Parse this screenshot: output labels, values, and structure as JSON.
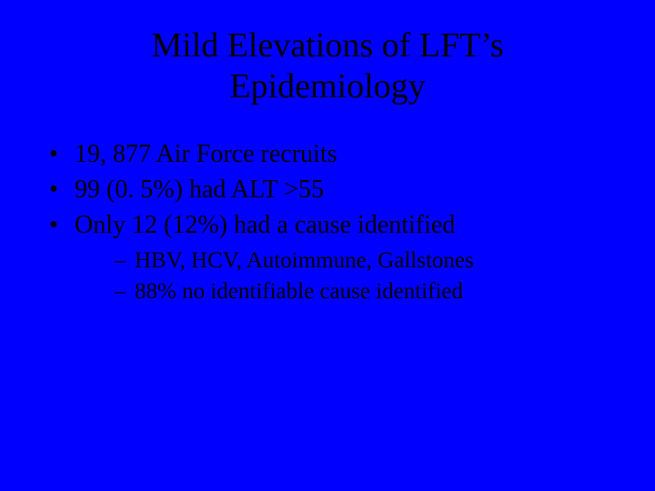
{
  "colors": {
    "background": "#0000ff",
    "text": "#000000"
  },
  "typography": {
    "family": "Times New Roman",
    "title_fontsize_pt": 38,
    "bullet_fontsize_pt": 28,
    "sub_fontsize_pt": 25
  },
  "title": {
    "line1": "Mild Elevations of LFT’s",
    "line2": "Epidemiology"
  },
  "bullets": [
    "19, 877 Air Force recruits",
    "99 (0. 5%) had ALT >55",
    "Only  12 (12%) had a cause identified"
  ],
  "subbullets": [
    "HBV, HCV, Autoimmune, Gallstones",
    "88% no identifiable cause identified"
  ]
}
